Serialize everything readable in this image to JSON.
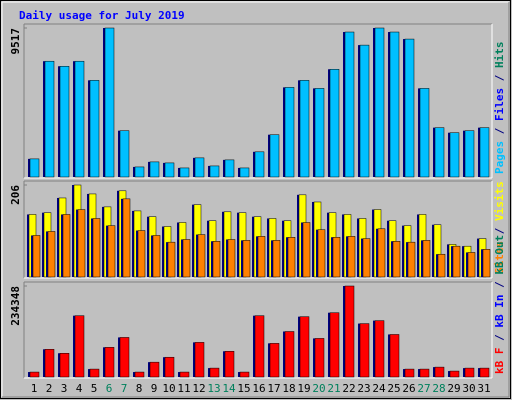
{
  "title": "Daily usage for July 2019",
  "legend_separator": " / ",
  "chart_data": [
    {
      "type": "bar",
      "ylim": [
        0,
        9517
      ],
      "yticks": [
        9517
      ],
      "series": [
        {
          "name": "Pages",
          "color": "#00c0ff",
          "values": [
            1157,
            7395,
            7073,
            7395,
            6173,
            9517,
            2958,
            643,
            965,
            900,
            579,
            1222,
            707,
            1093,
            579,
            1608,
            2701,
            5723,
            6173,
            5659,
            6880,
            9260,
            8424,
            9517,
            9260,
            8810,
            5659,
            3151,
            2829,
            2958,
            3151
          ]
        }
      ],
      "legend_only": [
        {
          "name": "Files",
          "color": "#0000ff"
        },
        {
          "name": "Hits",
          "color": "#00805c"
        }
      ]
    },
    {
      "type": "bar",
      "ylim": [
        0,
        206
      ],
      "yticks": [
        206
      ],
      "series": [
        {
          "name": "Sites",
          "color": "#ff8000",
          "values": [
            93,
            102,
            140,
            151,
            131,
            115,
            175,
            104,
            93,
            78,
            84,
            95,
            80,
            84,
            82,
            91,
            82,
            89,
            122,
            106,
            89,
            91,
            86,
            108,
            80,
            78,
            82,
            51,
            69,
            55,
            62
          ]
        },
        {
          "name": "Visits",
          "color": "#ffff00",
          "values": [
            140,
            144,
            177,
            206,
            186,
            157,
            193,
            148,
            135,
            113,
            122,
            162,
            126,
            146,
            144,
            135,
            131,
            126,
            184,
            168,
            144,
            140,
            131,
            151,
            126,
            115,
            140,
            117,
            73,
            69,
            86
          ]
        }
      ],
      "legend_only": []
    },
    {
      "type": "bar",
      "ylim": [
        0,
        234348
      ],
      "yticks": [
        234348
      ],
      "categories": [
        "1",
        "2",
        "3",
        "4",
        "5",
        "6",
        "7",
        "8",
        "9",
        "10",
        "11",
        "12",
        "13",
        "14",
        "15",
        "16",
        "17",
        "18",
        "19",
        "20",
        "21",
        "22",
        "23",
        "24",
        "25",
        "26",
        "27",
        "28",
        "29",
        "30",
        "31"
      ],
      "category_colors": [
        "#000000",
        "#000000",
        "#000000",
        "#000000",
        "#000000",
        "#00805c",
        "#00805c",
        "#000000",
        "#000000",
        "#000000",
        "#000000",
        "#000000",
        "#00805c",
        "#00805c",
        "#000000",
        "#000000",
        "#000000",
        "#000000",
        "#000000",
        "#00805c",
        "#00805c",
        "#000000",
        "#000000",
        "#000000",
        "#000000",
        "#000000",
        "#00805c",
        "#00805c",
        "#000000",
        "#000000",
        "#000000"
      ],
      "series": [
        {
          "name": "kB F",
          "color": "#ff0000",
          "values": [
            12736,
            71324,
            61130,
            157926,
            20380,
            76416,
            101890,
            12736,
            38209,
            50945,
            12736,
            89154,
            22925,
            66228,
            12736,
            157926,
            86606,
            117172,
            155379,
            99343,
            165571,
            234348,
            137551,
            145193,
            109531,
            20380,
            20380,
            25473,
            15283,
            22925,
            22925
          ]
        }
      ],
      "legend_only": [
        {
          "name": "kB In",
          "color": "#0000ff"
        },
        {
          "name": "kB Out",
          "color": "#00805c"
        }
      ]
    }
  ]
}
